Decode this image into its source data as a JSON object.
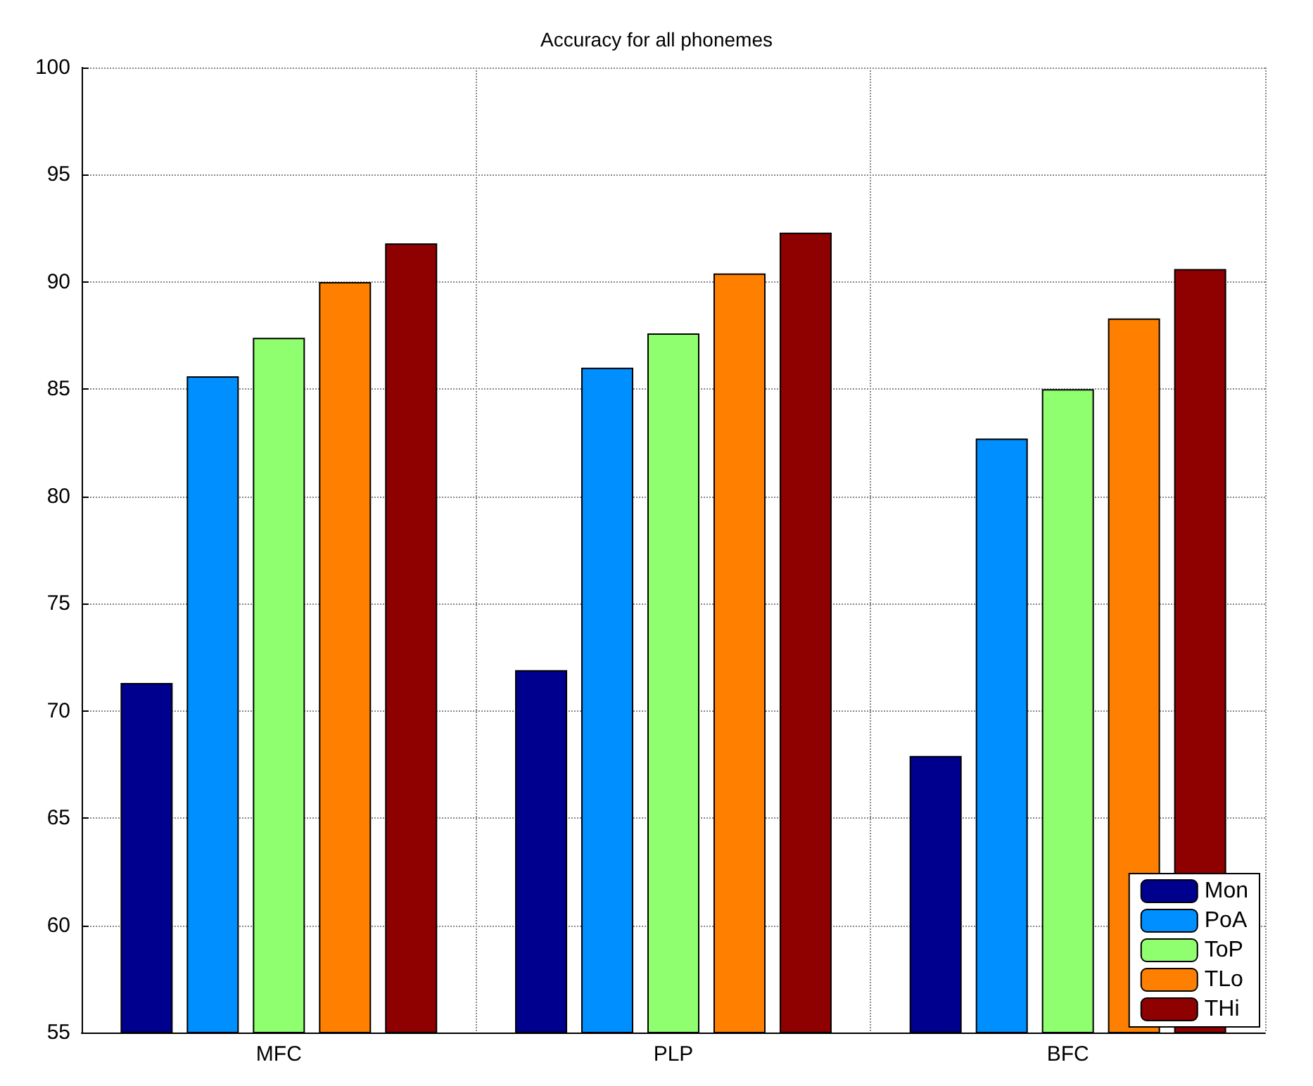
{
  "chart_data": {
    "type": "bar",
    "title": "Accuracy for all phonemes",
    "categories": [
      "MFC",
      "PLP",
      "BFC"
    ],
    "series": [
      {
        "name": "Mon",
        "color": "#00008f",
        "values": [
          71.3,
          71.9,
          67.9
        ]
      },
      {
        "name": "PoA",
        "color": "#008fff",
        "values": [
          85.6,
          86.0,
          82.7
        ]
      },
      {
        "name": "ToP",
        "color": "#8fff70",
        "values": [
          87.4,
          87.6,
          85.0
        ]
      },
      {
        "name": "TLo",
        "color": "#ff8000",
        "values": [
          90.0,
          90.4,
          88.3
        ]
      },
      {
        "name": "THi",
        "color": "#8f0000",
        "values": [
          91.8,
          92.3,
          90.6
        ]
      }
    ],
    "ylim": [
      55,
      100
    ],
    "yticks": [
      55,
      60,
      65,
      70,
      75,
      80,
      85,
      90,
      95,
      100
    ],
    "grid": true,
    "legend": "bottom right"
  }
}
